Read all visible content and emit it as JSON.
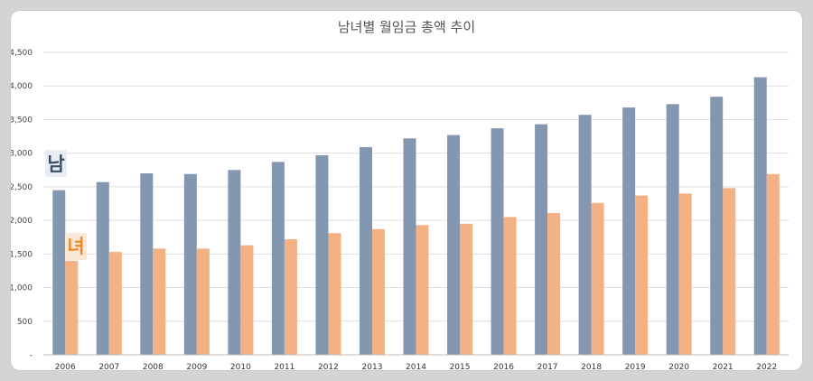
{
  "chart_data": {
    "type": "bar",
    "title": "남녀별 월임금 총액 추이",
    "categories": [
      "2006",
      "2007",
      "2008",
      "2009",
      "2010",
      "2011",
      "2012",
      "2013",
      "2014",
      "2015",
      "2016",
      "2017",
      "2018",
      "2019",
      "2020",
      "2021",
      "2022"
    ],
    "series": [
      {
        "name": "남",
        "color": "#8497b0",
        "values": [
          2450,
          2570,
          2700,
          2690,
          2750,
          2870,
          2970,
          3090,
          3220,
          3270,
          3370,
          3430,
          3570,
          3680,
          3730,
          3840,
          4130
        ]
      },
      {
        "name": "녀",
        "color": "#f4b183",
        "values": [
          1400,
          1530,
          1580,
          1580,
          1630,
          1720,
          1810,
          1870,
          1930,
          1950,
          2050,
          2110,
          2260,
          2370,
          2400,
          2480,
          2690
        ]
      }
    ],
    "ylim": [
      0,
      4500
    ],
    "yticks": [
      "-",
      "500",
      "1,000",
      "1,500",
      "2,000",
      "2,500",
      "3,000",
      "3,500",
      "4,000",
      "4,500"
    ],
    "grid": true,
    "legend": "inline labels at left (남 above bars, 녀 beside first bar)"
  },
  "legend_labels": {
    "male": {
      "text": "남",
      "text_color": "#3a4f63",
      "bg_color": "#e8edf3"
    },
    "female": {
      "text": "녀",
      "text_color": "#f08a24",
      "bg_color": "#fbe7d6"
    }
  }
}
